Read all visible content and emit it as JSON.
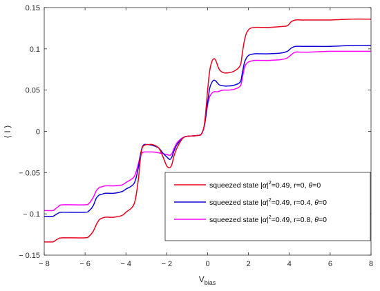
{
  "chart_data": {
    "type": "line",
    "title": "",
    "xlabel": "V",
    "xlabel_sub": "bias",
    "ylabel": "⟨ I ⟩",
    "xlim": [
      -8,
      8
    ],
    "ylim": [
      -0.15,
      0.15
    ],
    "xticks": [
      -8,
      -6,
      -4,
      -2,
      0,
      2,
      4,
      6,
      8
    ],
    "xtick_labels": [
      "− 8",
      "− 6",
      "− 4",
      "− 2",
      "0",
      "2",
      "4",
      "6",
      "8"
    ],
    "yticks": [
      0.15,
      0.1,
      0.05,
      0,
      -0.05,
      -0.1,
      -0.15
    ],
    "ytick_labels": [
      "0.15",
      "0.1",
      "0.05",
      "0",
      "− 0.05",
      "− 0.1",
      "− 0.15"
    ],
    "grid": false,
    "legend_position": "bottom-right",
    "series": [
      {
        "name": "squeezed state |α|²=0.49, r=0, θ=0",
        "legend": {
          "pre": "squeezed state |",
          "alpha": "α",
          "mid": "|",
          "sup": "2",
          "post": "=0.49, r=0, ",
          "theta": "θ",
          "end": "=0"
        },
        "color": "#e8001c",
        "x": [
          -8,
          -7.6,
          -7.5,
          -7.3,
          -7.1,
          -6,
          -5.8,
          -5.6,
          -5.45,
          -5.3,
          -5.15,
          -5,
          -4.6,
          -4.2,
          -4.0,
          -3.6,
          -3.4,
          -3.3,
          -3.2,
          -3.1,
          -3.0,
          -2.9,
          -2.7,
          -2.4,
          -2.2,
          -2.0,
          -1.85,
          -1.75,
          -1.65,
          -1.5,
          -1.3,
          -1.15,
          -1.0,
          -0.5,
          -0.3,
          -0.15,
          0,
          0.1,
          0.2,
          0.3,
          0.4,
          0.5,
          0.6,
          0.8,
          1.0,
          1.3,
          1.6,
          1.7,
          1.8,
          1.9,
          2.0,
          2.1,
          2.3,
          2.6,
          3.0,
          3.6,
          3.9,
          4.1,
          4.3,
          4.6,
          5.0,
          6.0,
          7.0,
          8.0
        ],
        "values": [
          -0.134,
          -0.134,
          -0.133,
          -0.13,
          -0.129,
          -0.129,
          -0.127,
          -0.121,
          -0.113,
          -0.107,
          -0.105,
          -0.104,
          -0.104,
          -0.102,
          -0.098,
          -0.088,
          -0.06,
          -0.035,
          -0.02,
          -0.017,
          -0.016,
          -0.016,
          -0.016,
          -0.02,
          -0.03,
          -0.042,
          -0.044,
          -0.04,
          -0.03,
          -0.02,
          -0.011,
          -0.007,
          -0.006,
          -0.005,
          -0.003,
          0.01,
          0.05,
          0.073,
          0.084,
          0.088,
          0.086,
          0.079,
          0.074,
          0.071,
          0.071,
          0.073,
          0.08,
          0.095,
          0.11,
          0.119,
          0.123,
          0.125,
          0.126,
          0.126,
          0.126,
          0.127,
          0.128,
          0.133,
          0.135,
          0.135,
          0.135,
          0.135,
          0.136,
          0.136
        ]
      },
      {
        "name": "squeezed state |α|²=0.49, r=0.4, θ=0",
        "legend": {
          "pre": "squeezed state |",
          "alpha": "α",
          "mid": "|",
          "sup": "2",
          "post": "=0.49, r=0.4, ",
          "theta": "θ",
          "end": "=0"
        },
        "color": "#0a00d8",
        "x": [
          -8,
          -7.6,
          -7.5,
          -7.3,
          -7.1,
          -6,
          -5.8,
          -5.6,
          -5.45,
          -5.3,
          -5.15,
          -5,
          -4.6,
          -4.2,
          -4.0,
          -3.6,
          -3.4,
          -3.3,
          -3.2,
          -3.1,
          -3.0,
          -2.9,
          -2.7,
          -2.4,
          -2.2,
          -2.0,
          -1.85,
          -1.75,
          -1.65,
          -1.5,
          -1.3,
          -1.15,
          -1.0,
          -0.5,
          -0.3,
          -0.15,
          0,
          0.1,
          0.2,
          0.3,
          0.4,
          0.5,
          0.6,
          0.8,
          1.0,
          1.3,
          1.6,
          1.7,
          1.8,
          1.9,
          2.0,
          2.1,
          2.3,
          2.6,
          3.0,
          3.6,
          3.9,
          4.1,
          4.3,
          4.6,
          5.0,
          6.0,
          7.0,
          8.0
        ],
        "values": [
          -0.103,
          -0.103,
          -0.102,
          -0.099,
          -0.098,
          -0.098,
          -0.096,
          -0.09,
          -0.081,
          -0.077,
          -0.076,
          -0.075,
          -0.075,
          -0.073,
          -0.07,
          -0.063,
          -0.045,
          -0.03,
          -0.019,
          -0.016,
          -0.016,
          -0.016,
          -0.017,
          -0.02,
          -0.026,
          -0.031,
          -0.034,
          -0.031,
          -0.024,
          -0.016,
          -0.01,
          -0.007,
          -0.006,
          -0.005,
          -0.003,
          0.008,
          0.035,
          0.052,
          0.059,
          0.062,
          0.061,
          0.058,
          0.056,
          0.055,
          0.055,
          0.056,
          0.06,
          0.071,
          0.083,
          0.089,
          0.092,
          0.093,
          0.094,
          0.094,
          0.094,
          0.095,
          0.097,
          0.101,
          0.103,
          0.103,
          0.103,
          0.103,
          0.104,
          0.104
        ]
      },
      {
        "name": "squeezed state |α|²=0.49, r=0.8, θ=0",
        "legend": {
          "pre": "squeezed state |",
          "alpha": "α",
          "mid": "|",
          "sup": "2",
          "post": "=0.49, r=0.8, ",
          "theta": "θ",
          "end": "=0"
        },
        "color": "#ff00ff",
        "x": [
          -8,
          -7.6,
          -7.5,
          -7.3,
          -7.1,
          -6,
          -5.8,
          -5.6,
          -5.45,
          -5.3,
          -5.15,
          -5,
          -4.6,
          -4.2,
          -4.0,
          -3.6,
          -3.4,
          -3.3,
          -3.2,
          -3.1,
          -3.0,
          -2.9,
          -2.7,
          -2.4,
          -2.2,
          -2.0,
          -1.85,
          -1.75,
          -1.65,
          -1.5,
          -1.3,
          -1.15,
          -1.0,
          -0.5,
          -0.3,
          -0.15,
          0,
          0.1,
          0.2,
          0.3,
          0.4,
          0.5,
          0.6,
          0.8,
          1.0,
          1.3,
          1.6,
          1.7,
          1.8,
          1.9,
          2.0,
          2.1,
          2.3,
          2.6,
          3.0,
          3.6,
          3.9,
          4.1,
          4.3,
          4.6,
          5.0,
          6.0,
          7.0,
          8.0
        ],
        "values": [
          -0.096,
          -0.096,
          -0.095,
          -0.091,
          -0.089,
          -0.089,
          -0.087,
          -0.08,
          -0.072,
          -0.068,
          -0.067,
          -0.066,
          -0.066,
          -0.065,
          -0.062,
          -0.055,
          -0.04,
          -0.03,
          -0.026,
          -0.025,
          -0.025,
          -0.025,
          -0.025,
          -0.026,
          -0.027,
          -0.028,
          -0.029,
          -0.027,
          -0.021,
          -0.014,
          -0.009,
          -0.007,
          -0.006,
          -0.005,
          -0.003,
          0.008,
          0.032,
          0.042,
          0.046,
          0.048,
          0.048,
          0.048,
          0.049,
          0.05,
          0.05,
          0.051,
          0.055,
          0.065,
          0.077,
          0.082,
          0.084,
          0.085,
          0.086,
          0.086,
          0.086,
          0.087,
          0.089,
          0.093,
          0.096,
          0.096,
          0.096,
          0.097,
          0.097,
          0.097
        ]
      }
    ]
  }
}
